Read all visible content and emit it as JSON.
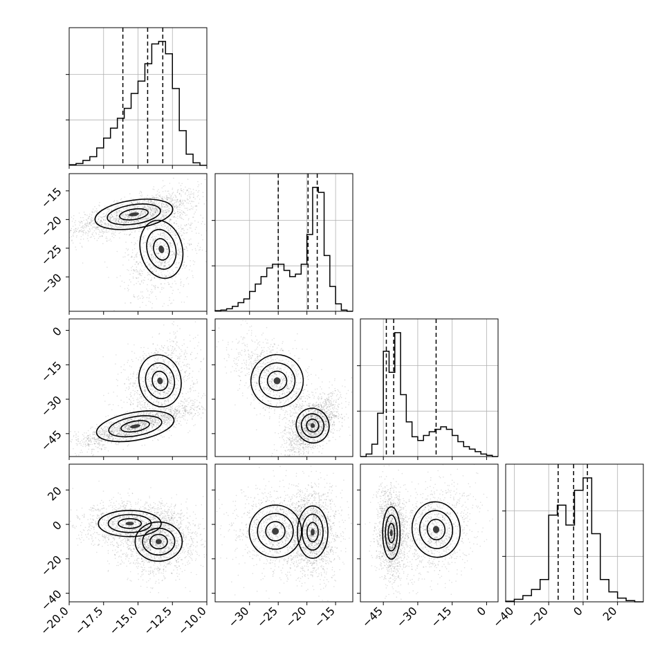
{
  "chart_data": {
    "type": "corner",
    "description_of_layout": "lower-triangular matrix of 1D histograms (diagonal) and 2D density/contour panels",
    "parameters": [
      {
        "range": [
          -20.0,
          -10.0
        ],
        "ticks": [
          -20.0,
          -17.5,
          -15.0,
          -12.5,
          -10.0
        ],
        "tick_labels": [
          "−20.0",
          "−17.5",
          "−15.0",
          "−12.5",
          "−10.0"
        ],
        "quantiles": [
          -16.1,
          -14.3,
          -13.2
        ]
      },
      {
        "range": [
          -36,
          -12
        ],
        "ticks": [
          -30,
          -25,
          -20,
          -15
        ],
        "tick_labels": [
          "−30",
          "−25",
          "−20",
          "−15"
        ],
        "quantiles": [
          -25.0,
          -19.8,
          -18.2
        ]
      },
      {
        "range": [
          -55,
          5
        ],
        "ticks": [
          -45,
          -30,
          -15,
          0
        ],
        "tick_labels": [
          "−45",
          "−30",
          "−15",
          "0"
        ],
        "quantiles": [
          -43.7,
          -40.5,
          -22.0
        ]
      },
      {
        "range": [
          -45,
          35
        ],
        "ticks": [
          -40,
          -20,
          0,
          20
        ],
        "tick_labels": [
          "−40",
          "−20",
          "0",
          "20"
        ],
        "quantiles": [
          -14.5,
          -5.5,
          2.5
        ]
      }
    ],
    "histograms": [
      {
        "bins": [
          -20,
          -19.5,
          -19,
          -18.5,
          -18,
          -17.5,
          -17,
          -16.5,
          -16,
          -15.5,
          -15,
          -14.5,
          -14,
          -13.5,
          -13,
          -12.5,
          -12,
          -11.5,
          -11,
          -10.5,
          -10
        ],
        "counts": [
          0.005,
          0.015,
          0.04,
          0.07,
          0.14,
          0.22,
          0.3,
          0.38,
          0.46,
          0.58,
          0.68,
          0.82,
          0.98,
          1.0,
          0.9,
          0.62,
          0.28,
          0.09,
          0.02,
          0.0
        ]
      },
      {
        "bins": [
          -36,
          -35,
          -34,
          -33,
          -32,
          -31,
          -30,
          -29,
          -28,
          -27,
          -26,
          -25,
          -24,
          -23,
          -22,
          -21,
          -20,
          -19,
          -18,
          -17,
          -16,
          -15,
          -14,
          -13,
          -12
        ],
        "counts": [
          0.005,
          0.01,
          0.02,
          0.04,
          0.07,
          0.1,
          0.16,
          0.22,
          0.28,
          0.35,
          0.38,
          0.38,
          0.33,
          0.28,
          0.3,
          0.38,
          0.62,
          1.0,
          0.96,
          0.45,
          0.2,
          0.06,
          0.01,
          0.0
        ]
      },
      {
        "bins": [
          -55,
          -52.5,
          -50,
          -47.5,
          -45,
          -42.5,
          -40,
          -37.5,
          -35,
          -32.5,
          -30,
          -27.5,
          -25,
          -22.5,
          -20,
          -17.5,
          -15,
          -12.5,
          -10,
          -7.5,
          -5,
          -2.5,
          0,
          2.5,
          5
        ],
        "counts": [
          0.0,
          0.02,
          0.1,
          0.35,
          0.85,
          0.68,
          1.0,
          0.5,
          0.28,
          0.16,
          0.13,
          0.17,
          0.2,
          0.22,
          0.24,
          0.22,
          0.17,
          0.12,
          0.08,
          0.06,
          0.04,
          0.02,
          0.01,
          0.0
        ]
      },
      {
        "bins": [
          -45,
          -40,
          -35,
          -30,
          -25,
          -20,
          -15,
          -10,
          -5,
          0,
          5,
          10,
          15,
          20,
          25,
          30,
          35
        ],
        "counts": [
          0.005,
          0.02,
          0.05,
          0.1,
          0.18,
          0.7,
          0.78,
          0.62,
          0.9,
          1.0,
          0.55,
          0.18,
          0.08,
          0.03,
          0.01,
          0.0
        ]
      }
    ],
    "density_panels": [
      {
        "row": 1,
        "col": 0,
        "clusters": [
          {
            "center": [
              -15.3,
              -19.1
            ],
            "sd": [
              1.5,
              1.3
            ],
            "rho": 0.7,
            "weight": 0.6
          },
          {
            "center": [
              -13.3,
              -25.2
            ],
            "sd": [
              0.8,
              2.7
            ],
            "rho": 0.3,
            "weight": 0.4
          }
        ]
      },
      {
        "row": 2,
        "col": 0,
        "clusters": [
          {
            "center": [
              -15.2,
              -41.8
            ],
            "sd": [
              1.5,
              3.2
            ],
            "rho": 0.85,
            "weight": 0.6
          },
          {
            "center": [
              -13.4,
              -22.0
            ],
            "sd": [
              0.8,
              6.0
            ],
            "rho": 0.3,
            "weight": 0.4
          }
        ]
      },
      {
        "row": 2,
        "col": 1,
        "clusters": [
          {
            "center": [
              -19.0,
              -41.5
            ],
            "sd": [
              1.5,
              4.0
            ],
            "rho": 0.6,
            "weight": 0.6
          },
          {
            "center": [
              -25.2,
              -22.0
            ],
            "sd": [
              2.4,
              6.0
            ],
            "rho": -0.55,
            "weight": 0.4
          }
        ]
      },
      {
        "row": 3,
        "col": 0,
        "clusters": [
          {
            "center": [
              -15.6,
              0.5
            ],
            "sd": [
              1.2,
              4.0
            ],
            "rho": 0.0,
            "weight": 0.4
          },
          {
            "center": [
              -13.5,
              -10.0
            ],
            "sd": [
              0.9,
              6.0
            ],
            "rho": 0.0,
            "weight": 0.6
          }
        ]
      },
      {
        "row": 3,
        "col": 1,
        "clusters": [
          {
            "center": [
              -19.0,
              -4.5
            ],
            "sd": [
              1.4,
              8.0
            ],
            "rho": 0.0,
            "weight": 0.6
          },
          {
            "center": [
              -25.5,
              -4.0
            ],
            "sd": [
              2.4,
              8.0
            ],
            "rho": 0.0,
            "weight": 0.4
          }
        ]
      },
      {
        "row": 3,
        "col": 2,
        "clusters": [
          {
            "center": [
              -41.5,
              -5.0
            ],
            "sd": [
              2.0,
              8.0
            ],
            "rho": 0.0,
            "weight": 0.6
          },
          {
            "center": [
              -22.0,
              -3.0
            ],
            "sd": [
              5.5,
              8.5
            ],
            "rho": 0.2,
            "weight": 0.4
          }
        ]
      }
    ]
  }
}
